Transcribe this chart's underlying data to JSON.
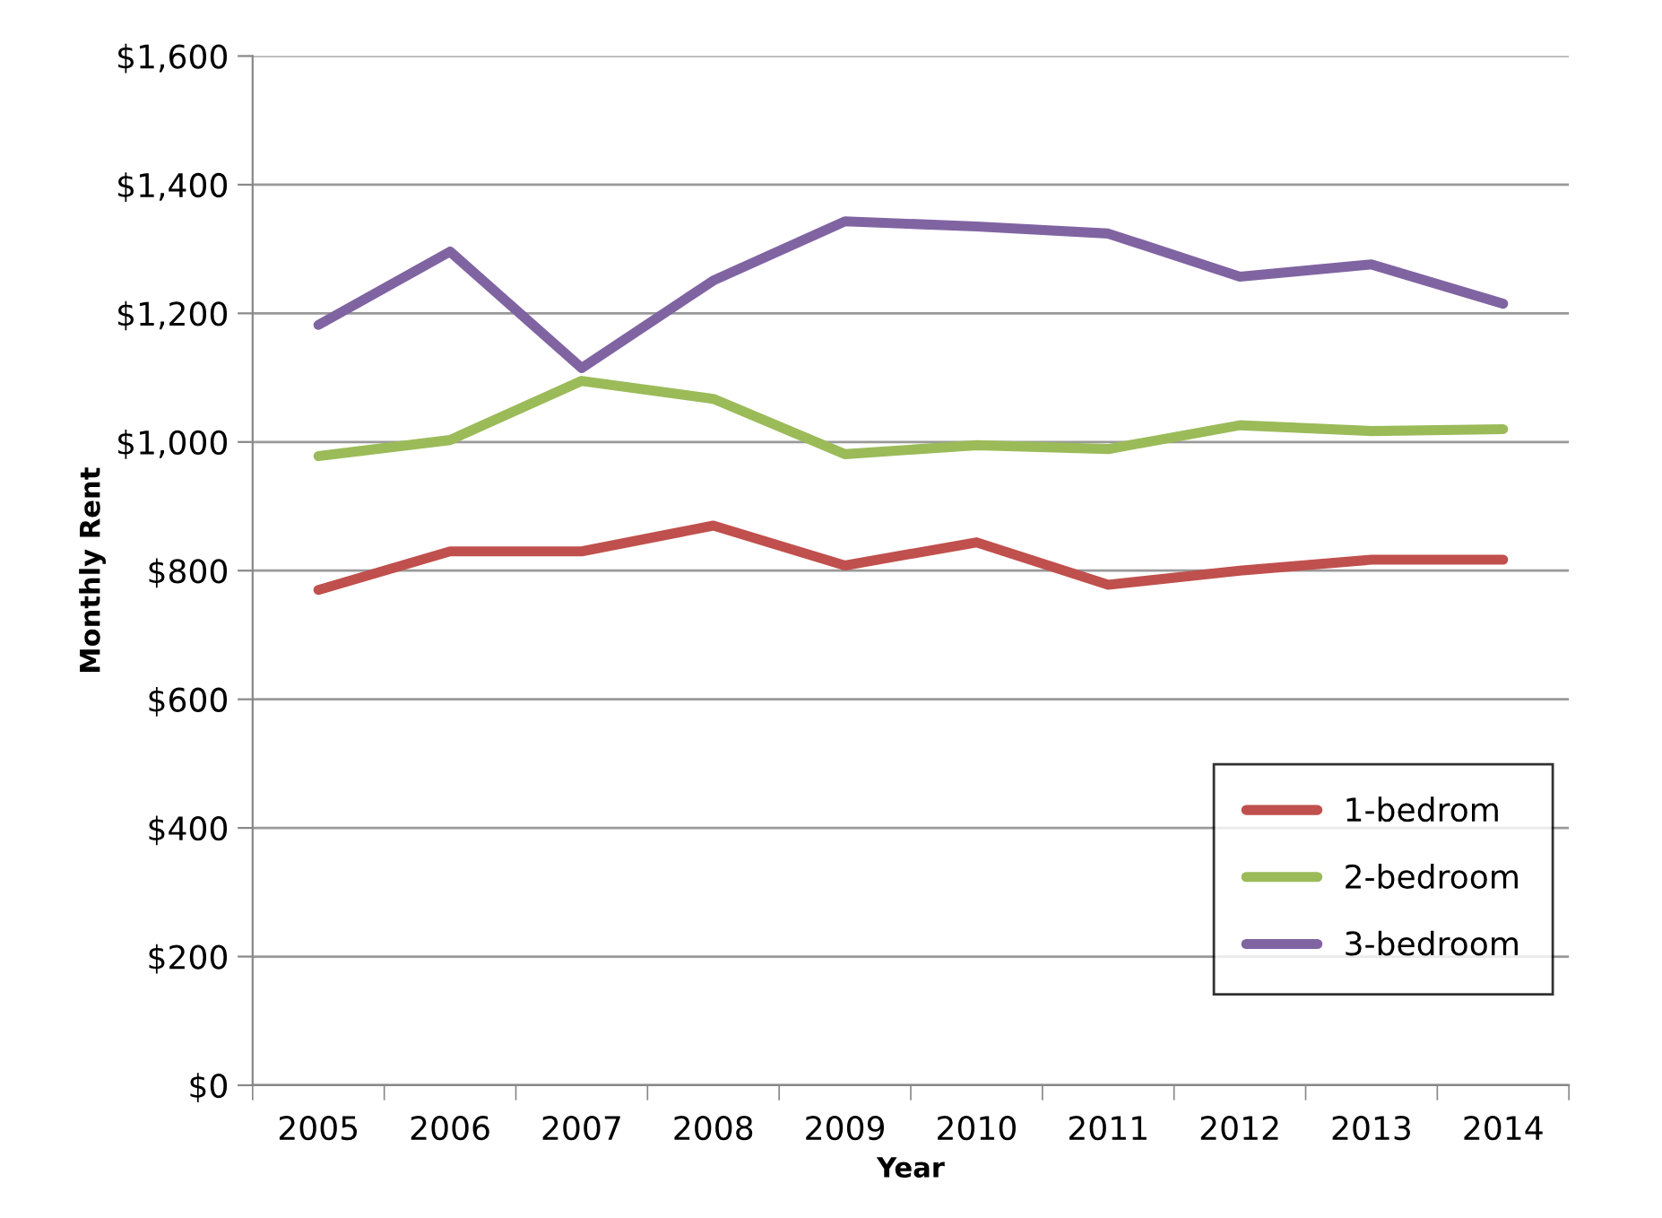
{
  "chart_data": {
    "type": "line",
    "xlabel": "Year",
    "ylabel": "Monthly Rent",
    "categories": [
      "2005",
      "2006",
      "2007",
      "2008",
      "2009",
      "2010",
      "2011",
      "2012",
      "2013",
      "2014"
    ],
    "series": [
      {
        "name": "1-bedrom",
        "color": "#c0504d",
        "values": [
          770,
          830,
          830,
          870,
          808,
          844,
          778,
          800,
          817,
          817
        ]
      },
      {
        "name": "2-bedroom",
        "color": "#9bbb59",
        "values": [
          978,
          1003,
          1095,
          1067,
          981,
          995,
          989,
          1026,
          1017,
          1020
        ]
      },
      {
        "name": "3-bedroom",
        "color": "#8064a2",
        "values": [
          1182,
          1296,
          1115,
          1251,
          1343,
          1335,
          1324,
          1257,
          1276,
          1215
        ]
      }
    ],
    "ylim": [
      0,
      1600
    ],
    "yticks": [
      {
        "value": 0,
        "label": "$0"
      },
      {
        "value": 200,
        "label": "$200"
      },
      {
        "value": 400,
        "label": "$400"
      },
      {
        "value": 600,
        "label": "$600"
      },
      {
        "value": 800,
        "label": "$800"
      },
      {
        "value": 1000,
        "label": "$1,000"
      },
      {
        "value": 1200,
        "label": "$1,200"
      },
      {
        "value": 1400,
        "label": "$1,400"
      },
      {
        "value": 1600,
        "label": "$1,600"
      }
    ],
    "grid": "y",
    "legend": "right",
    "marker": "none",
    "line_style": "solid"
  }
}
